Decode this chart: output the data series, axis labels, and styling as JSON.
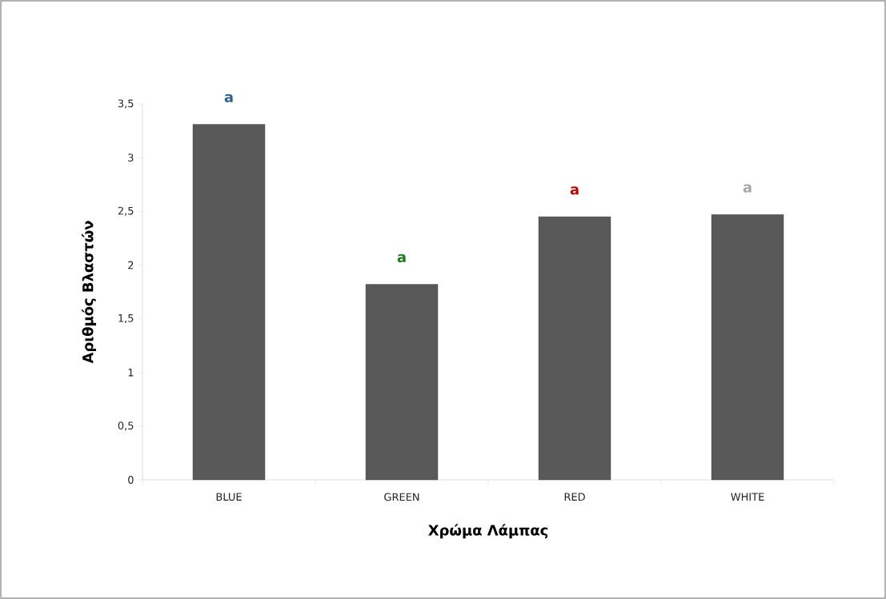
{
  "chart_data": {
    "type": "bar",
    "xlabel": "Χρώμα Λάμπας",
    "ylabel": "Αριθμός Βλαστών",
    "categories": [
      "BLUE",
      "GREEN",
      "RED",
      "WHITE"
    ],
    "values": [
      3.31,
      1.82,
      2.45,
      2.47
    ],
    "color": "#595959",
    "ylim": [
      0,
      3.5
    ],
    "yticks": [
      0,
      {
        "value": 0.5,
        "label": "0,5"
      },
      1,
      {
        "value": 1.5,
        "label": "1,5"
      },
      2,
      {
        "value": 2.5,
        "label": "2,5"
      },
      3,
      {
        "value": 3.5,
        "label": "3,5"
      }
    ],
    "grid": false,
    "annotations": [
      "a",
      "a",
      "a",
      "a"
    ]
  }
}
